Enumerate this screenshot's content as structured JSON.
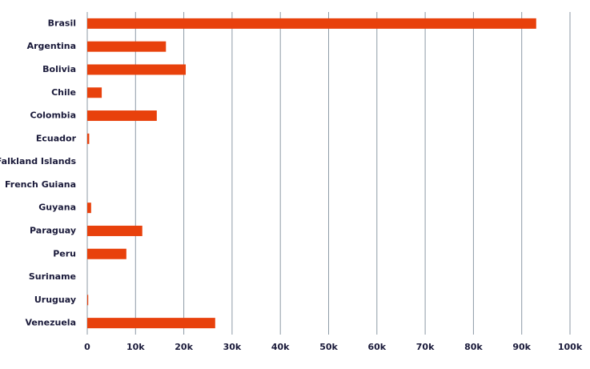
{
  "chart_data": {
    "type": "bar",
    "orientation": "horizontal",
    "categories": [
      "Brasil",
      "Argentina",
      "Bolivia",
      "Chile",
      "Colombia",
      "Ecuador",
      "Falkland Islands",
      "French Guiana",
      "Guyana",
      "Paraguay",
      "Peru",
      "Suriname",
      "Uruguay",
      "Venezuela"
    ],
    "values": [
      93000,
      16300,
      20400,
      3000,
      14400,
      400,
      0,
      0,
      800,
      11400,
      8100,
      0,
      200,
      26500
    ],
    "color": "#e8410c",
    "xlim": [
      0,
      100000
    ],
    "xticks": [
      0,
      {
        "value": 10000,
        "label": "10k"
      },
      {
        "value": 20000,
        "label": "20k"
      },
      {
        "value": 30000,
        "label": "30k"
      },
      {
        "value": 40000,
        "label": "40k"
      },
      {
        "value": 50000,
        "label": "50k"
      },
      {
        "value": 60000,
        "label": "60k"
      },
      {
        "value": 70000,
        "label": "70k"
      },
      {
        "value": 80000,
        "label": "80k"
      },
      {
        "value": 90000,
        "label": "90k"
      },
      {
        "value": 100000,
        "label": "100k"
      }
    ],
    "grid": true
  }
}
